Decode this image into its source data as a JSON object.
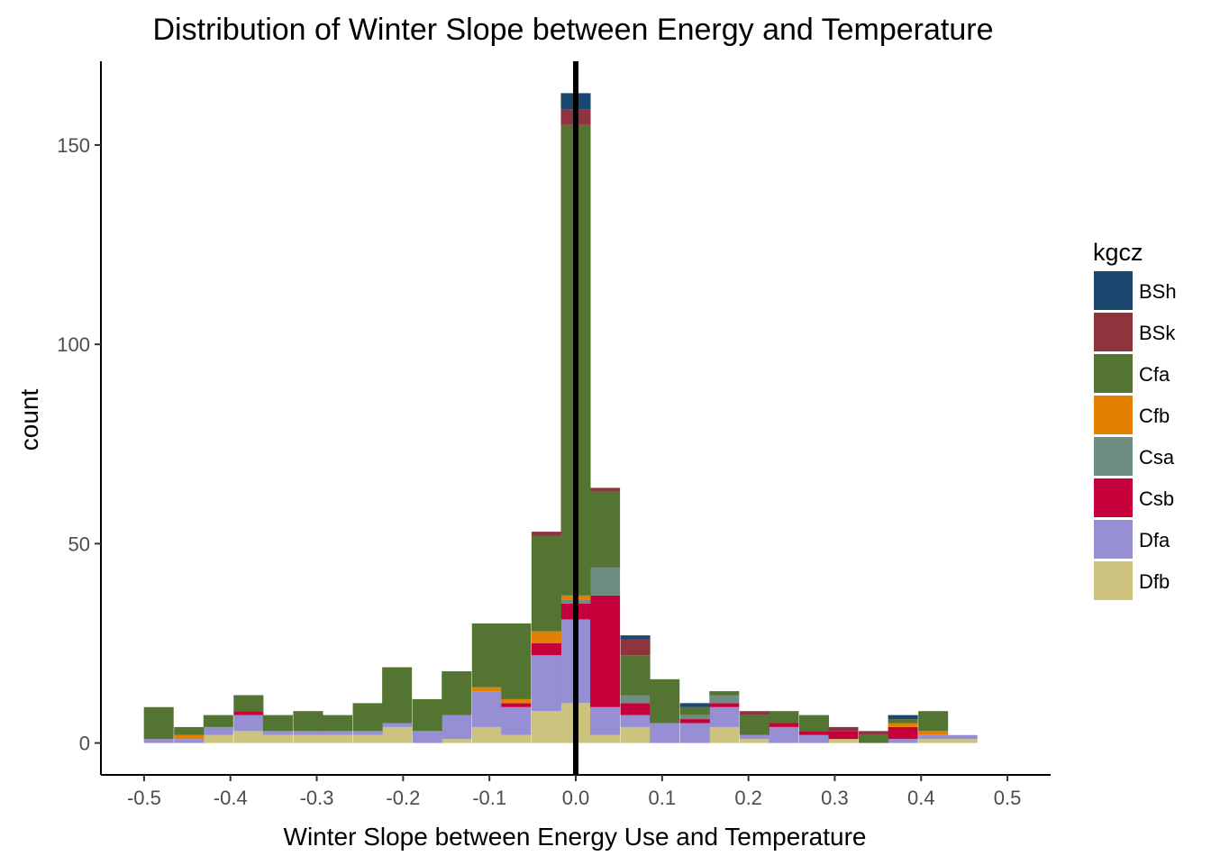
{
  "chart_data": {
    "type": "bar",
    "subtype": "stacked-histogram",
    "title": "Distribution of Winter Slope between Energy and Temperature",
    "xlabel": "Winter Slope between Energy Use and Temperature",
    "ylabel": "count",
    "xlim": [
      -0.55,
      0.55
    ],
    "ylim": [
      -8,
      171
    ],
    "x_ticks": [
      -0.5,
      -0.4,
      -0.3,
      -0.2,
      -0.1,
      0.0,
      0.1,
      0.2,
      0.3,
      0.4,
      0.5
    ],
    "x_tick_labels": [
      "-0.5",
      "-0.4",
      "-0.3",
      "-0.2",
      "-0.1",
      "0.0",
      "0.1",
      "0.2",
      "0.3",
      "0.4",
      "0.5"
    ],
    "y_ticks": [
      0,
      50,
      100,
      150
    ],
    "y_tick_labels": [
      "0",
      "50",
      "100",
      "150"
    ],
    "grid": false,
    "bin_width": 0.0345,
    "bin_centers": [
      -0.483,
      -0.448,
      -0.414,
      -0.379,
      -0.345,
      -0.31,
      -0.276,
      -0.241,
      -0.207,
      -0.172,
      -0.138,
      -0.103,
      -0.069,
      -0.034,
      0.0,
      0.034,
      0.069,
      0.103,
      0.138,
      0.172,
      0.207,
      0.241,
      0.276,
      0.31,
      0.345,
      0.379,
      0.414,
      0.448
    ],
    "reference_line": {
      "x": 0,
      "color": "#000000"
    },
    "legend": {
      "title": "kgcz",
      "position": "right"
    },
    "series": [
      {
        "name": "Dfb",
        "color": "#CCC37E",
        "values": [
          0,
          0,
          2,
          3,
          2,
          2,
          2,
          2,
          4,
          0,
          1,
          4,
          2,
          8,
          10,
          2,
          4,
          0,
          0,
          4,
          1,
          0,
          0,
          1,
          0,
          0,
          1,
          1
        ]
      },
      {
        "name": "Dfa",
        "color": "#968FD3",
        "values": [
          1,
          1,
          2,
          4,
          1,
          1,
          1,
          1,
          1,
          3,
          6,
          9,
          7,
          14,
          21,
          7,
          3,
          5,
          5,
          5,
          1,
          4,
          2,
          0,
          0,
          1,
          1,
          1
        ]
      },
      {
        "name": "Csb",
        "color": "#C6003B",
        "values": [
          0,
          0,
          0,
          1,
          0,
          0,
          0,
          0,
          0,
          0,
          0,
          0,
          1,
          3,
          4,
          28,
          3,
          0,
          1,
          1,
          0,
          1,
          1,
          2,
          0,
          3,
          0,
          0
        ]
      },
      {
        "name": "Csa",
        "color": "#6E8E82",
        "values": [
          0,
          0,
          0,
          0,
          0,
          0,
          0,
          0,
          0,
          0,
          0,
          0,
          0,
          0,
          1,
          7,
          2,
          0,
          1,
          2,
          0,
          0,
          0,
          0,
          0,
          0,
          0,
          0
        ]
      },
      {
        "name": "Cfb",
        "color": "#E48000",
        "values": [
          0,
          1,
          0,
          0,
          0,
          0,
          0,
          0,
          0,
          0,
          0,
          1,
          1,
          3,
          1,
          0,
          0,
          0,
          0,
          0,
          0,
          0,
          0,
          0,
          0,
          1,
          1,
          0
        ]
      },
      {
        "name": "Cfa",
        "color": "#547431",
        "values": [
          8,
          2,
          3,
          4,
          4,
          5,
          4,
          7,
          14,
          8,
          11,
          16,
          19,
          24,
          118,
          19,
          10,
          11,
          2,
          1,
          5,
          3,
          4,
          0,
          2,
          1,
          5,
          0
        ]
      },
      {
        "name": "BSk",
        "color": "#8E343E",
        "values": [
          0,
          0,
          0,
          0,
          0,
          0,
          0,
          0,
          0,
          0,
          0,
          0,
          0,
          1,
          4,
          1,
          4,
          0,
          0,
          0,
          1,
          0,
          0,
          1,
          1,
          0,
          0,
          0
        ]
      },
      {
        "name": "BSh",
        "color": "#1B466E",
        "values": [
          0,
          0,
          0,
          0,
          0,
          0,
          0,
          0,
          0,
          0,
          0,
          0,
          0,
          0,
          4,
          0,
          1,
          0,
          1,
          0,
          0,
          0,
          0,
          0,
          0,
          1,
          0,
          0
        ]
      }
    ]
  }
}
